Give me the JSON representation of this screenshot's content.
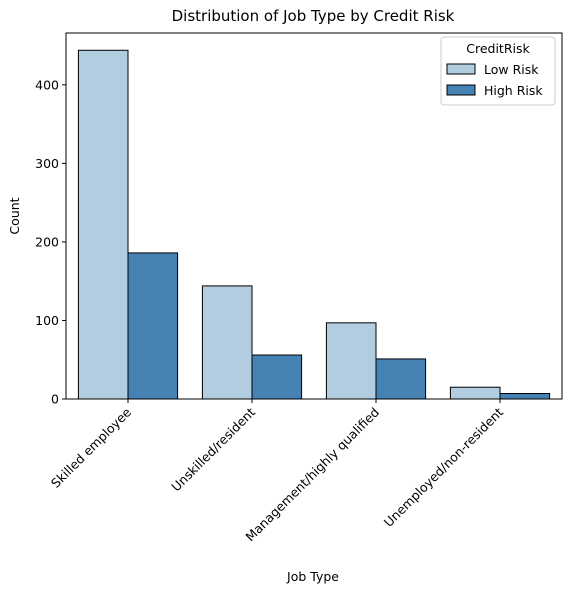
{
  "chart_data": {
    "type": "bar",
    "title": "Distribution of Job Type by Credit Risk",
    "xlabel": "Job Type",
    "ylabel": "Count",
    "categories": [
      "Skilled employee",
      "Unskilled/resident",
      "Management/highly qualified",
      "Unemployed/non-resident"
    ],
    "series": [
      {
        "name": "Low Risk",
        "values": [
          444,
          144,
          97,
          15
        ],
        "color": "#b3cde0"
      },
      {
        "name": "High Risk",
        "values": [
          186,
          56,
          51,
          7
        ],
        "color": "#4682b4"
      }
    ],
    "ylim": [
      0,
      466
    ],
    "yticks": [
      0,
      100,
      200,
      300,
      400
    ],
    "legend": {
      "title": "CreditRisk",
      "placement": "top-right"
    },
    "grid": false
  }
}
